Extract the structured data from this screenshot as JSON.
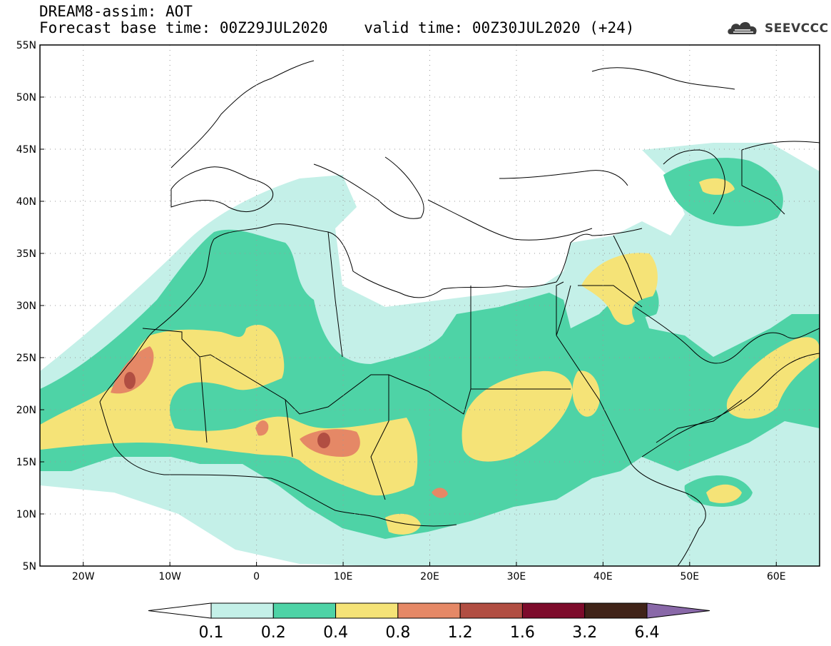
{
  "header": {
    "line1": "DREAM8-assim: AOT",
    "line2_base": "Forecast base time: 00Z29JUL2020",
    "line2_valid": "valid time: 00Z30JUL2020 (+24)"
  },
  "logo": {
    "text": "SEEVCCC",
    "icon": "cloud-logo-icon"
  },
  "map": {
    "lon_range": [
      -25,
      65
    ],
    "lat_range": [
      5,
      55
    ],
    "lat_ticks": [
      {
        "value": 55,
        "label": "55N"
      },
      {
        "value": 50,
        "label": "50N"
      },
      {
        "value": 45,
        "label": "45N"
      },
      {
        "value": 40,
        "label": "40N"
      },
      {
        "value": 35,
        "label": "35N"
      },
      {
        "value": 30,
        "label": "30N"
      },
      {
        "value": 25,
        "label": "25N"
      },
      {
        "value": 20,
        "label": "20N"
      },
      {
        "value": 15,
        "label": "15N"
      },
      {
        "value": 10,
        "label": "10N"
      },
      {
        "value": 5,
        "label": "5N"
      }
    ],
    "lon_ticks": [
      {
        "value": -20,
        "label": "20W"
      },
      {
        "value": -10,
        "label": "10W"
      },
      {
        "value": 0,
        "label": "0"
      },
      {
        "value": 10,
        "label": "10E"
      },
      {
        "value": 20,
        "label": "20E"
      },
      {
        "value": 30,
        "label": "30E"
      },
      {
        "value": 40,
        "label": "40E"
      },
      {
        "value": 50,
        "label": "50E"
      },
      {
        "value": 60,
        "label": "60E"
      }
    ],
    "grid": "dotted",
    "field": "Aerosol optical thickness (AOT)"
  },
  "colorbar": {
    "labels": [
      "0.1",
      "0.2",
      "0.4",
      "0.8",
      "1.2",
      "1.6",
      "3.2",
      "6.4"
    ],
    "colors": [
      "#ffffff",
      "#c4f0e8",
      "#4ed3a6",
      "#f5e377",
      "#e58866",
      "#b14e42",
      "#7d0b2b",
      "#402318",
      "#8968a8"
    ],
    "extend": "both"
  }
}
